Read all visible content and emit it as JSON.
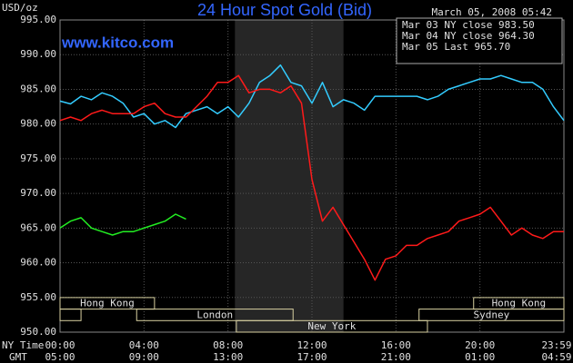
{
  "chart_data": {
    "type": "line",
    "title": "24 Hour Spot Gold (Bid)",
    "timestamp": "March 05, 2008 05:42",
    "source": "www.kitco.com",
    "y_unit": "USD/oz",
    "x_row_labels": [
      "NY Time",
      "GMT"
    ],
    "x": [
      0,
      0.5,
      1,
      1.5,
      2,
      2.5,
      3,
      3.5,
      4,
      4.5,
      5,
      5.5,
      6,
      6.5,
      7,
      7.5,
      8,
      8.5,
      9,
      9.5,
      10,
      10.5,
      11,
      11.5,
      12,
      12.5,
      13,
      13.5,
      14,
      14.5,
      15,
      15.5,
      16,
      16.5,
      17,
      17.5,
      18,
      18.5,
      19,
      19.5,
      20,
      20.5,
      21,
      21.5,
      22,
      22.5,
      23,
      23.5,
      24
    ],
    "series": [
      {
        "name": "Mar 03 NY close 983.50",
        "color": "#33ccff",
        "values": [
          983.3,
          982.9,
          984,
          983.5,
          984.5,
          984,
          983,
          981,
          981.5,
          980,
          980.5,
          979.5,
          981.5,
          982,
          982.5,
          981.5,
          982.5,
          981,
          983,
          986,
          987,
          988.5,
          986,
          985.5,
          983,
          986,
          982.5,
          983.5,
          983,
          982,
          984,
          984,
          984,
          984,
          984,
          983.5,
          984,
          985,
          985.5,
          986,
          986.5,
          986.5,
          987,
          986.5,
          986,
          986,
          985,
          982.5,
          980.5
        ]
      },
      {
        "name": "Mar 04 NY close 964.30",
        "color": "#ff1a1a",
        "values": [
          980.5,
          981,
          980.5,
          981.5,
          982,
          981.5,
          981.5,
          981.5,
          982.5,
          983,
          981.5,
          981,
          981,
          982.5,
          984,
          986,
          986,
          987,
          984.5,
          985,
          985,
          984.5,
          985.5,
          983,
          972,
          966,
          968,
          965.5,
          963,
          960.5,
          957.5,
          960.5,
          961,
          962.5,
          962.5,
          963.5,
          964,
          964.5,
          966,
          966.5,
          967,
          968,
          966,
          964,
          965,
          964,
          963.5,
          964.5,
          964.5
        ]
      },
      {
        "name": "Mar 05 Last 965.70",
        "color": "#22ee22",
        "values": [
          965,
          966,
          966.5,
          965,
          964.5,
          964,
          964.5,
          964.5,
          965,
          965.5,
          966,
          967,
          966.3,
          null,
          null,
          null,
          null,
          null,
          null,
          null,
          null,
          null,
          null,
          null,
          null,
          null,
          null,
          null,
          null,
          null,
          null,
          null,
          null,
          null,
          null,
          null,
          null,
          null,
          null,
          null,
          null,
          null,
          null,
          null,
          null,
          null,
          null,
          null,
          null
        ]
      }
    ],
    "xlim": [
      0,
      24
    ],
    "ylim": [
      950,
      995
    ],
    "yticks": [
      {
        "value": 995,
        "label": "995.00"
      },
      {
        "value": 990,
        "label": "990.00"
      },
      {
        "value": 985,
        "label": "985.00"
      },
      {
        "value": 980,
        "label": "980.00"
      },
      {
        "value": 975,
        "label": "975.00"
      },
      {
        "value": 970,
        "label": "970.00"
      },
      {
        "value": 965,
        "label": "965.00"
      },
      {
        "value": 960,
        "label": "960.00"
      },
      {
        "value": 955,
        "label": "955.00"
      },
      {
        "value": 950,
        "label": "950.00"
      }
    ],
    "xticks": [
      {
        "value": 0,
        "label": "00:00"
      },
      {
        "value": 4,
        "label": "04:00"
      },
      {
        "value": 8,
        "label": "08:00"
      },
      {
        "value": 12,
        "label": "12:00"
      },
      {
        "value": 16,
        "label": "16:00"
      },
      {
        "value": 20,
        "label": "20:00"
      },
      {
        "value": 24,
        "label": "23:59"
      }
    ],
    "xticks_gmt": [
      {
        "value": 0,
        "label": "05:00"
      },
      {
        "value": 4,
        "label": "09:00"
      },
      {
        "value": 8,
        "label": "13:00"
      },
      {
        "value": 12,
        "label": "17:00"
      },
      {
        "value": 16,
        "label": "21:00"
      },
      {
        "value": 20,
        "label": "01:00"
      },
      {
        "value": 24,
        "label": "04:59"
      }
    ],
    "shaded": [
      8.33,
      13.5
    ],
    "sessions": [
      [
        {
          "name": "Hong Kong",
          "spans": [
            [
              0,
              4.5
            ],
            [
              19.7,
              24
            ]
          ]
        }
      ],
      [
        {
          "name": "Sydney",
          "spans": [
            [
              0,
              1
            ],
            [
              17.1,
              24
            ]
          ]
        },
        {
          "name": "London",
          "spans": [
            [
              3.65,
              11.1
            ]
          ]
        }
      ],
      [
        {
          "name": "New York",
          "spans": [
            [
              8.4,
              17.5
            ]
          ]
        }
      ]
    ],
    "grid": true,
    "legend": "top-right"
  }
}
